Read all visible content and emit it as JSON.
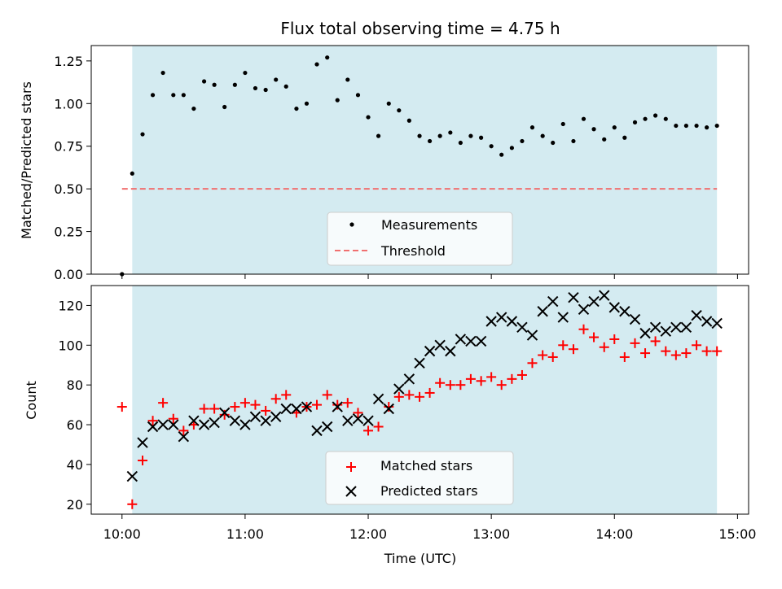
{
  "chart_data": {
    "title": "Flux total observing time = 4.75 h",
    "xlabel": "Time (UTC)",
    "x_ticks": [
      "10:00",
      "11:00",
      "12:00",
      "13:00",
      "14:00",
      "15:00"
    ],
    "x_tick_hours": [
      10,
      11,
      12,
      13,
      14,
      15
    ],
    "xlim_hours": [
      9.75,
      15.09
    ],
    "shaded_span_hours": [
      10.083,
      14.833
    ],
    "colors": {
      "shade": "#d4ebf1",
      "measurement": "#000000",
      "threshold": "#f07070",
      "matched": "#ff0000",
      "predicted": "#000000"
    },
    "top": {
      "type": "scatter",
      "ylabel": "Matched/Predicted stars",
      "ylim": [
        0,
        1.34
      ],
      "y_ticks": [
        "0.00",
        "0.25",
        "0.50",
        "0.75",
        "1.00",
        "1.25"
      ],
      "y_tick_values": [
        0,
        0.25,
        0.5,
        0.75,
        1.0,
        1.25
      ],
      "threshold": {
        "value": 0.5,
        "x_range_hours": [
          10.0,
          14.833
        ]
      },
      "legend": [
        "Measurements",
        "Threshold"
      ],
      "series": [
        {
          "name": "Measurements",
          "points": [
            [
              10.0,
              0.0
            ],
            [
              10.083,
              0.59
            ],
            [
              10.167,
              0.82
            ],
            [
              10.25,
              1.05
            ],
            [
              10.333,
              1.18
            ],
            [
              10.417,
              1.05
            ],
            [
              10.5,
              1.05
            ],
            [
              10.583,
              0.97
            ],
            [
              10.667,
              1.13
            ],
            [
              10.75,
              1.11
            ],
            [
              10.833,
              0.98
            ],
            [
              10.917,
              1.11
            ],
            [
              11.0,
              1.18
            ],
            [
              11.083,
              1.09
            ],
            [
              11.167,
              1.08
            ],
            [
              11.25,
              1.14
            ],
            [
              11.333,
              1.1
            ],
            [
              11.417,
              0.97
            ],
            [
              11.5,
              1.0
            ],
            [
              11.583,
              1.23
            ],
            [
              11.667,
              1.27
            ],
            [
              11.75,
              1.02
            ],
            [
              11.833,
              1.14
            ],
            [
              11.917,
              1.05
            ],
            [
              12.0,
              0.92
            ],
            [
              12.083,
              0.81
            ],
            [
              12.167,
              1.0
            ],
            [
              12.25,
              0.96
            ],
            [
              12.333,
              0.9
            ],
            [
              12.417,
              0.81
            ],
            [
              12.5,
              0.78
            ],
            [
              12.583,
              0.81
            ],
            [
              12.667,
              0.83
            ],
            [
              12.75,
              0.77
            ],
            [
              12.833,
              0.81
            ],
            [
              12.917,
              0.8
            ],
            [
              13.0,
              0.75
            ],
            [
              13.083,
              0.7
            ],
            [
              13.167,
              0.74
            ],
            [
              13.25,
              0.78
            ],
            [
              13.333,
              0.86
            ],
            [
              13.417,
              0.81
            ],
            [
              13.5,
              0.77
            ],
            [
              13.583,
              0.88
            ],
            [
              13.667,
              0.78
            ],
            [
              13.75,
              0.91
            ],
            [
              13.833,
              0.85
            ],
            [
              13.917,
              0.79
            ],
            [
              14.0,
              0.86
            ],
            [
              14.083,
              0.8
            ],
            [
              14.167,
              0.89
            ],
            [
              14.25,
              0.91
            ],
            [
              14.333,
              0.93
            ],
            [
              14.417,
              0.91
            ],
            [
              14.5,
              0.87
            ],
            [
              14.583,
              0.87
            ],
            [
              14.667,
              0.87
            ],
            [
              14.75,
              0.86
            ],
            [
              14.833,
              0.87
            ]
          ]
        }
      ]
    },
    "bottom": {
      "type": "scatter",
      "ylabel": "Count",
      "ylim": [
        15,
        130
      ],
      "y_ticks": [
        "20",
        "40",
        "60",
        "80",
        "100",
        "120"
      ],
      "y_tick_values": [
        20,
        40,
        60,
        80,
        100,
        120
      ],
      "legend": [
        "Matched stars",
        "Predicted stars"
      ],
      "series": [
        {
          "name": "Matched stars",
          "marker": "plus",
          "points": [
            [
              10.0,
              69
            ],
            [
              10.083,
              20
            ],
            [
              10.167,
              42
            ],
            [
              10.25,
              62
            ],
            [
              10.333,
              71
            ],
            [
              10.417,
              63
            ],
            [
              10.5,
              57
            ],
            [
              10.583,
              60
            ],
            [
              10.667,
              68
            ],
            [
              10.75,
              68
            ],
            [
              10.833,
              65
            ],
            [
              10.917,
              69
            ],
            [
              11.0,
              71
            ],
            [
              11.083,
              70
            ],
            [
              11.167,
              67
            ],
            [
              11.25,
              73
            ],
            [
              11.333,
              75
            ],
            [
              11.417,
              66
            ],
            [
              11.5,
              69
            ],
            [
              11.583,
              70
            ],
            [
              11.667,
              75
            ],
            [
              11.75,
              70
            ],
            [
              11.833,
              71
            ],
            [
              11.917,
              66
            ],
            [
              12.0,
              57
            ],
            [
              12.083,
              59
            ],
            [
              12.167,
              69
            ],
            [
              12.25,
              74
            ],
            [
              12.333,
              75
            ],
            [
              12.417,
              74
            ],
            [
              12.5,
              76
            ],
            [
              12.583,
              81
            ],
            [
              12.667,
              80
            ],
            [
              12.75,
              80
            ],
            [
              12.833,
              83
            ],
            [
              12.917,
              82
            ],
            [
              13.0,
              84
            ],
            [
              13.083,
              80
            ],
            [
              13.167,
              83
            ],
            [
              13.25,
              85
            ],
            [
              13.333,
              91
            ],
            [
              13.417,
              95
            ],
            [
              13.5,
              94
            ],
            [
              13.583,
              100
            ],
            [
              13.667,
              98
            ],
            [
              13.75,
              108
            ],
            [
              13.833,
              104
            ],
            [
              13.917,
              99
            ],
            [
              14.0,
              103
            ],
            [
              14.083,
              94
            ],
            [
              14.167,
              101
            ],
            [
              14.25,
              96
            ],
            [
              14.333,
              102
            ],
            [
              14.417,
              97
            ],
            [
              14.5,
              95
            ],
            [
              14.583,
              96
            ],
            [
              14.667,
              100
            ],
            [
              14.75,
              97
            ],
            [
              14.833,
              97
            ]
          ]
        },
        {
          "name": "Predicted stars",
          "marker": "cross",
          "points": [
            [
              10.083,
              34
            ],
            [
              10.167,
              51
            ],
            [
              10.25,
              59
            ],
            [
              10.333,
              60
            ],
            [
              10.417,
              60
            ],
            [
              10.5,
              54
            ],
            [
              10.583,
              62
            ],
            [
              10.667,
              60
            ],
            [
              10.75,
              61
            ],
            [
              10.833,
              66
            ],
            [
              10.917,
              62
            ],
            [
              11.0,
              60
            ],
            [
              11.083,
              64
            ],
            [
              11.167,
              62
            ],
            [
              11.25,
              64
            ],
            [
              11.333,
              68
            ],
            [
              11.417,
              68
            ],
            [
              11.5,
              69
            ],
            [
              11.583,
              57
            ],
            [
              11.667,
              59
            ],
            [
              11.75,
              69
            ],
            [
              11.833,
              62
            ],
            [
              11.917,
              63
            ],
            [
              12.0,
              62
            ],
            [
              12.083,
              73
            ],
            [
              12.167,
              68
            ],
            [
              12.25,
              78
            ],
            [
              12.333,
              83
            ],
            [
              12.417,
              91
            ],
            [
              12.5,
              97
            ],
            [
              12.583,
              100
            ],
            [
              12.667,
              97
            ],
            [
              12.75,
              103
            ],
            [
              12.833,
              102
            ],
            [
              12.917,
              102
            ],
            [
              13.0,
              112
            ],
            [
              13.083,
              114
            ],
            [
              13.167,
              112
            ],
            [
              13.25,
              109
            ],
            [
              13.333,
              105
            ],
            [
              13.417,
              117
            ],
            [
              13.5,
              122
            ],
            [
              13.583,
              114
            ],
            [
              13.667,
              124
            ],
            [
              13.75,
              118
            ],
            [
              13.833,
              122
            ],
            [
              13.917,
              125
            ],
            [
              14.0,
              119
            ],
            [
              14.083,
              117
            ],
            [
              14.167,
              113
            ],
            [
              14.25,
              106
            ],
            [
              14.333,
              109
            ],
            [
              14.417,
              107
            ],
            [
              14.5,
              109
            ],
            [
              14.583,
              109
            ],
            [
              14.667,
              115
            ],
            [
              14.75,
              112
            ],
            [
              14.833,
              111
            ]
          ]
        }
      ]
    }
  }
}
